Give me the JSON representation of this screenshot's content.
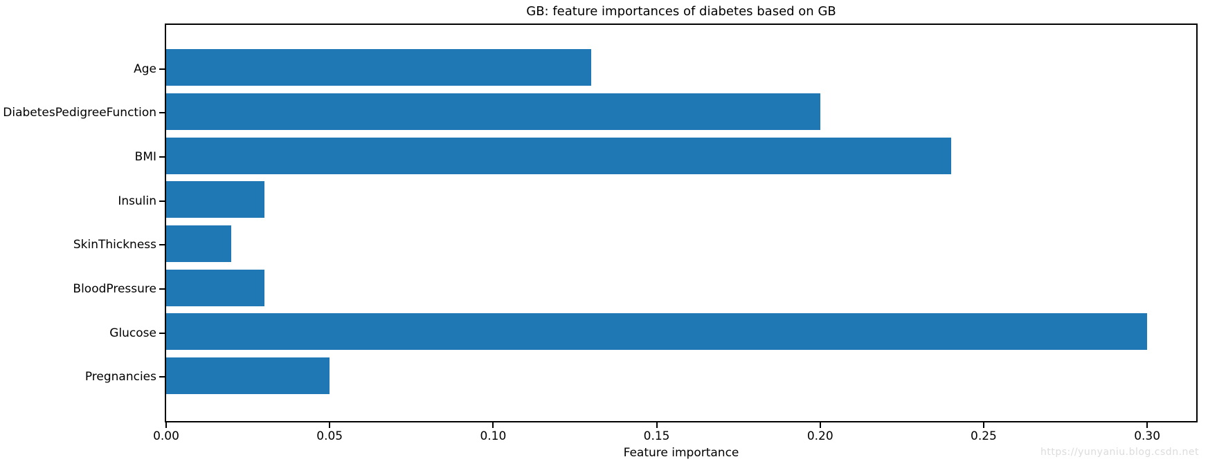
{
  "chart_data": {
    "type": "bar",
    "orientation": "horizontal",
    "title": "GB: feature importances of diabetes based on GB",
    "xlabel": "Feature importance",
    "ylabel": "",
    "categories": [
      "Age",
      "DiabetesPedigreeFunction",
      "BMI",
      "Insulin",
      "SkinThickness",
      "BloodPressure",
      "Glucose",
      "Pregnancies"
    ],
    "values": [
      0.13,
      0.2,
      0.24,
      0.03,
      0.02,
      0.03,
      0.3,
      0.05
    ],
    "xlim": [
      0,
      0.315
    ],
    "xticks": [
      "0.00",
      "0.05",
      "0.10",
      "0.15",
      "0.20",
      "0.25",
      "0.30"
    ],
    "xtick_values": [
      0.0,
      0.05,
      0.1,
      0.15,
      0.2,
      0.25,
      0.3
    ],
    "grid": false,
    "legend": "none",
    "bar_color": "#1f77b4"
  },
  "watermark": "https://yunyaniu.blog.csdn.net",
  "colors": {
    "bar": "#1f77b4",
    "spine": "#000000",
    "text": "#000000",
    "watermark": "#dcdcdc",
    "background": "#ffffff"
  }
}
